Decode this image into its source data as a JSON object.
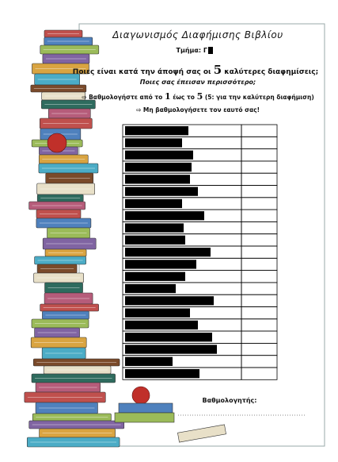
{
  "header": {
    "title": "Διαγωνισμός Διαφήμισης Βιβλίου",
    "class_label": "Τμήμα: Γ"
  },
  "question": {
    "parts": [
      "Ποιες είναι κατά την άποψή σας οι",
      "5",
      "καλύτερες διαφημίσεις;"
    ]
  },
  "subquestion": "Ποιες σας έπεισαν περισσότερο;",
  "instructions": [
    {
      "parts": [
        "⇨ Βαθμολογήστε από το",
        "1",
        "έως το",
        "5",
        "(5: για την καλύτερη διαφήμιση)"
      ]
    },
    {
      "parts": [
        "⇨ Μη βαθμολογήσετε τον εαυτό σας!"
      ]
    }
  ],
  "grader_label": "Βαθμολογητής:"
}
